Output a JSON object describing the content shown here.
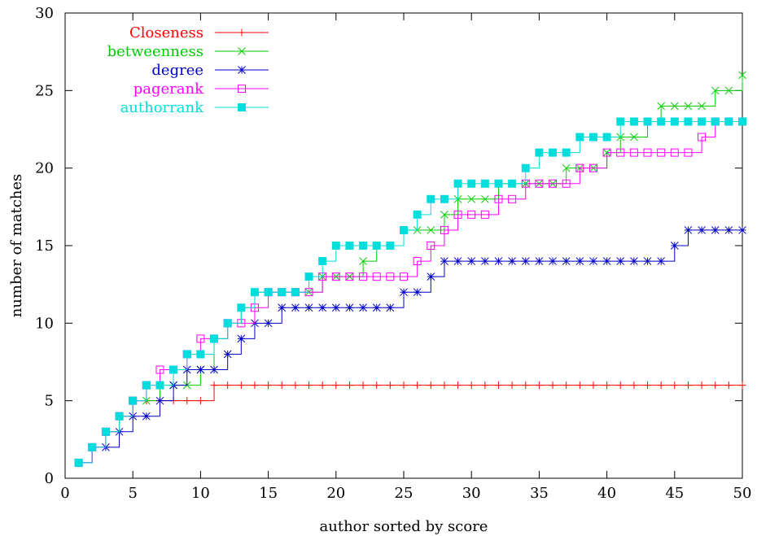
{
  "chart_data": {
    "type": "line",
    "title": "",
    "xlabel": "author sorted by score",
    "ylabel": "number of matches",
    "xlim": [
      0,
      50
    ],
    "ylim": [
      0,
      30
    ],
    "xticks": [
      0,
      5,
      10,
      15,
      20,
      25,
      30,
      35,
      40,
      45,
      50
    ],
    "yticks": [
      0,
      5,
      10,
      15,
      20,
      25,
      30
    ],
    "grid": false,
    "legend_position": "top-left",
    "x": [
      1,
      2,
      3,
      4,
      5,
      6,
      7,
      8,
      9,
      10,
      11,
      12,
      13,
      14,
      15,
      16,
      17,
      18,
      19,
      20,
      21,
      22,
      23,
      24,
      25,
      26,
      27,
      28,
      29,
      30,
      31,
      32,
      33,
      34,
      35,
      36,
      37,
      38,
      39,
      40,
      41,
      42,
      43,
      44,
      45,
      46,
      47,
      48,
      49,
      50
    ],
    "series": [
      {
        "name": "Closeness",
        "color": "#ff0000",
        "marker": "plus",
        "values": [
          1,
          2,
          3,
          4,
          5,
          5,
          5,
          5,
          5,
          5,
          6,
          6,
          6,
          6,
          6,
          6,
          6,
          6,
          6,
          6,
          6,
          6,
          6,
          6,
          6,
          6,
          6,
          6,
          6,
          6,
          6,
          6,
          6,
          6,
          6,
          6,
          6,
          6,
          6,
          6,
          6,
          6,
          6,
          6,
          6,
          6,
          6,
          6,
          6,
          6
        ]
      },
      {
        "name": "betweenness",
        "color": "#00cc00",
        "marker": "cross",
        "values": [
          1,
          2,
          3,
          4,
          5,
          5,
          6,
          6,
          6,
          7,
          9,
          10,
          11,
          12,
          12,
          12,
          12,
          12,
          13,
          13,
          13,
          14,
          15,
          15,
          16,
          16,
          16,
          17,
          18,
          18,
          18,
          19,
          19,
          19,
          19,
          19,
          20,
          20,
          20,
          21,
          22,
          22,
          23,
          24,
          24,
          24,
          24,
          25,
          25,
          26
        ]
      },
      {
        "name": "degree",
        "color": "#0000cc",
        "marker": "star",
        "values": [
          1,
          2,
          2,
          3,
          4,
          4,
          5,
          6,
          7,
          7,
          7,
          8,
          9,
          10,
          10,
          11,
          11,
          11,
          11,
          11,
          11,
          11,
          11,
          11,
          12,
          12,
          13,
          14,
          14,
          14,
          14,
          14,
          14,
          14,
          14,
          14,
          14,
          14,
          14,
          14,
          14,
          14,
          14,
          14,
          15,
          16,
          16,
          16,
          16,
          16
        ]
      },
      {
        "name": "pagerank",
        "color": "#ff00ff",
        "marker": "open-square",
        "values": [
          1,
          2,
          3,
          4,
          5,
          6,
          7,
          7,
          8,
          9,
          9,
          10,
          10,
          11,
          12,
          12,
          12,
          12,
          13,
          13,
          13,
          13,
          13,
          13,
          13,
          14,
          15,
          16,
          17,
          17,
          17,
          18,
          18,
          19,
          19,
          19,
          19,
          20,
          20,
          21,
          21,
          21,
          21,
          21,
          21,
          21,
          22,
          23,
          23,
          23
        ]
      },
      {
        "name": "authorrank",
        "color": "#00dddd",
        "marker": "filled-square",
        "values": [
          1,
          2,
          3,
          4,
          5,
          6,
          6,
          7,
          8,
          8,
          9,
          10,
          11,
          12,
          12,
          12,
          12,
          13,
          14,
          15,
          15,
          15,
          15,
          15,
          16,
          17,
          18,
          18,
          19,
          19,
          19,
          19,
          19,
          20,
          21,
          21,
          21,
          22,
          22,
          22,
          23,
          23,
          23,
          23,
          23,
          23,
          23,
          23,
          23,
          23
        ]
      }
    ]
  }
}
